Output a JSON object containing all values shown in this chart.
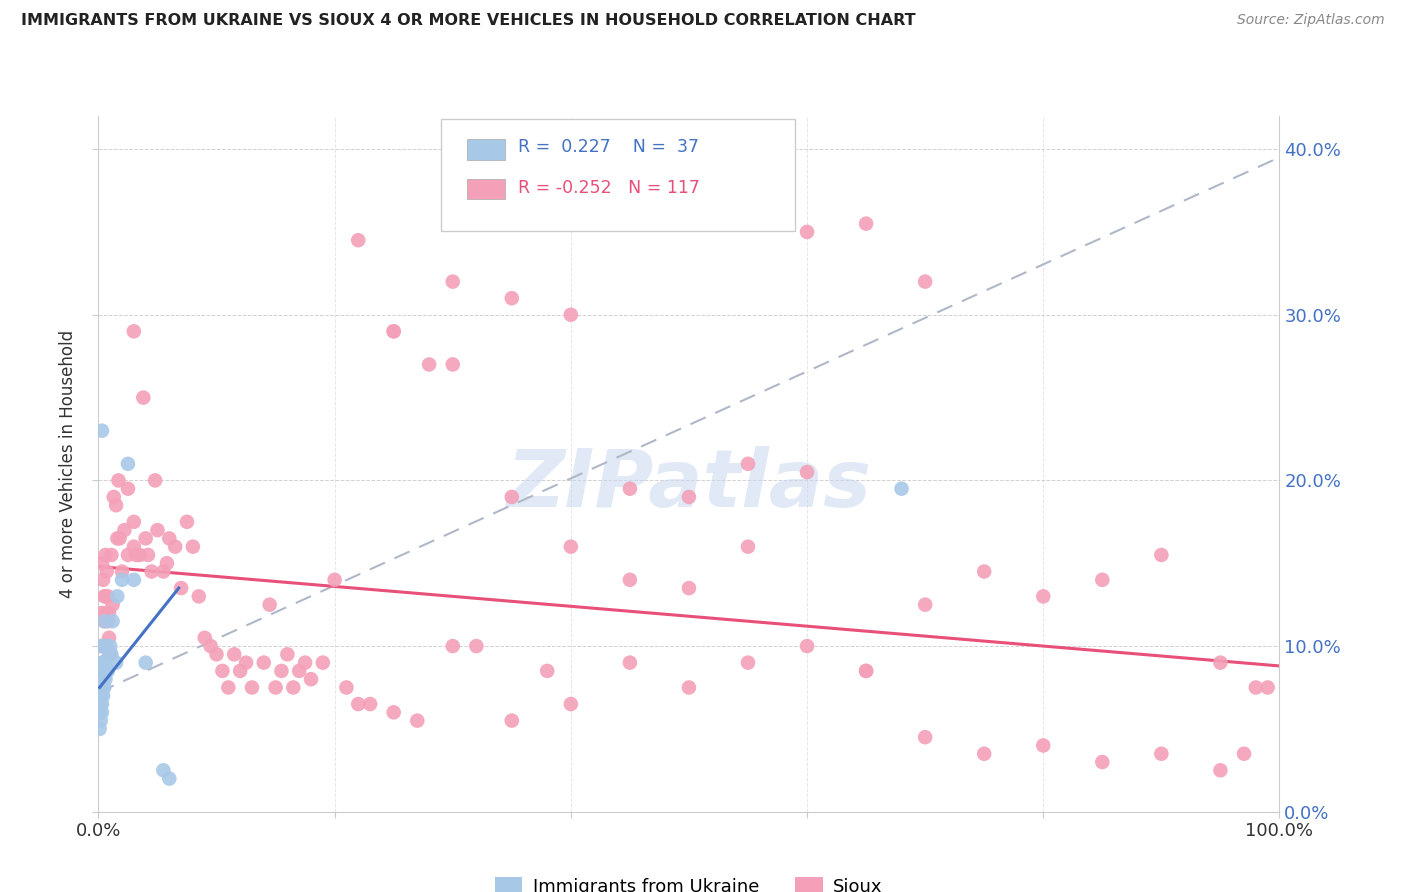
{
  "title": "IMMIGRANTS FROM UKRAINE VS SIOUX 4 OR MORE VEHICLES IN HOUSEHOLD CORRELATION CHART",
  "source": "Source: ZipAtlas.com",
  "ylabel": "4 or more Vehicles in Household",
  "xlim": [
    0.0,
    1.0
  ],
  "ylim": [
    0.0,
    0.42
  ],
  "yticks": [
    0.0,
    0.1,
    0.2,
    0.3,
    0.4
  ],
  "ytick_labels": [
    "",
    "",
    "",
    "",
    ""
  ],
  "right_ytick_labels": [
    "0.0%",
    "10.0%",
    "20.0%",
    "30.0%",
    "40.0%"
  ],
  "xticks": [
    0.0,
    0.2,
    0.4,
    0.6,
    0.8,
    1.0
  ],
  "ukraine_R": 0.227,
  "ukraine_N": 37,
  "sioux_R": -0.252,
  "sioux_N": 117,
  "ukraine_color": "#a8c8e8",
  "sioux_color": "#f4a0b8",
  "ukraine_line_color": "#4472c4",
  "sioux_line_color": "#e8507a",
  "trendline_color": "#b0b8c8",
  "background_color": "#ffffff",
  "ukraine_points_x": [
    0.001,
    0.001,
    0.002,
    0.002,
    0.002,
    0.003,
    0.003,
    0.003,
    0.003,
    0.003,
    0.003,
    0.004,
    0.004,
    0.004,
    0.004,
    0.005,
    0.005,
    0.005,
    0.005,
    0.006,
    0.006,
    0.007,
    0.008,
    0.009,
    0.01,
    0.011,
    0.012,
    0.015,
    0.016,
    0.02,
    0.025,
    0.03,
    0.04,
    0.055,
    0.06,
    0.68,
    0.003
  ],
  "ukraine_points_y": [
    0.05,
    0.06,
    0.055,
    0.065,
    0.07,
    0.06,
    0.065,
    0.08,
    0.085,
    0.09,
    0.1,
    0.07,
    0.075,
    0.08,
    0.09,
    0.075,
    0.085,
    0.1,
    0.115,
    0.08,
    0.09,
    0.1,
    0.085,
    0.095,
    0.1,
    0.095,
    0.115,
    0.09,
    0.13,
    0.14,
    0.21,
    0.14,
    0.09,
    0.025,
    0.02,
    0.195,
    0.23
  ],
  "sioux_points_x": [
    0.002,
    0.003,
    0.003,
    0.004,
    0.004,
    0.005,
    0.005,
    0.006,
    0.006,
    0.007,
    0.007,
    0.008,
    0.008,
    0.009,
    0.009,
    0.01,
    0.011,
    0.012,
    0.013,
    0.015,
    0.016,
    0.017,
    0.018,
    0.02,
    0.022,
    0.025,
    0.025,
    0.03,
    0.03,
    0.032,
    0.035,
    0.038,
    0.04,
    0.042,
    0.045,
    0.048,
    0.05,
    0.055,
    0.058,
    0.06,
    0.065,
    0.07,
    0.075,
    0.08,
    0.085,
    0.09,
    0.095,
    0.1,
    0.105,
    0.11,
    0.115,
    0.12,
    0.125,
    0.13,
    0.14,
    0.145,
    0.15,
    0.155,
    0.16,
    0.165,
    0.17,
    0.175,
    0.18,
    0.19,
    0.2,
    0.21,
    0.22,
    0.23,
    0.25,
    0.27,
    0.3,
    0.32,
    0.35,
    0.38,
    0.4,
    0.45,
    0.5,
    0.55,
    0.6,
    0.65,
    0.7,
    0.75,
    0.8,
    0.85,
    0.9,
    0.95,
    0.97,
    0.99,
    0.25,
    0.28,
    0.3,
    0.35,
    0.4,
    0.45,
    0.5,
    0.55,
    0.6,
    0.65,
    0.7,
    0.75,
    0.8,
    0.85,
    0.9,
    0.95,
    0.98,
    0.22,
    0.25,
    0.3,
    0.35,
    0.4,
    0.45,
    0.5,
    0.55,
    0.6,
    0.65,
    0.7,
    0.03
  ],
  "sioux_points_y": [
    0.1,
    0.12,
    0.15,
    0.1,
    0.14,
    0.115,
    0.13,
    0.13,
    0.155,
    0.12,
    0.145,
    0.115,
    0.13,
    0.105,
    0.12,
    0.095,
    0.155,
    0.125,
    0.19,
    0.185,
    0.165,
    0.2,
    0.165,
    0.145,
    0.17,
    0.155,
    0.195,
    0.16,
    0.175,
    0.155,
    0.155,
    0.25,
    0.165,
    0.155,
    0.145,
    0.2,
    0.17,
    0.145,
    0.15,
    0.165,
    0.16,
    0.135,
    0.175,
    0.16,
    0.13,
    0.105,
    0.1,
    0.095,
    0.085,
    0.075,
    0.095,
    0.085,
    0.09,
    0.075,
    0.09,
    0.125,
    0.075,
    0.085,
    0.095,
    0.075,
    0.085,
    0.09,
    0.08,
    0.09,
    0.14,
    0.075,
    0.065,
    0.065,
    0.06,
    0.055,
    0.1,
    0.1,
    0.055,
    0.085,
    0.065,
    0.09,
    0.075,
    0.09,
    0.1,
    0.085,
    0.045,
    0.035,
    0.04,
    0.03,
    0.035,
    0.025,
    0.035,
    0.075,
    0.29,
    0.27,
    0.32,
    0.31,
    0.3,
    0.195,
    0.19,
    0.21,
    0.205,
    0.085,
    0.125,
    0.145,
    0.13,
    0.14,
    0.155,
    0.09,
    0.075,
    0.345,
    0.29,
    0.27,
    0.19,
    0.16,
    0.14,
    0.135,
    0.16,
    0.35,
    0.355,
    0.32,
    0.29
  ],
  "watermark": "ZIPatlas",
  "ukraine_line_x0": 0.001,
  "ukraine_line_x1": 0.068,
  "ukraine_line_y0": 0.075,
  "ukraine_line_y1": 0.135,
  "sioux_line_x0": 0.0,
  "sioux_line_x1": 1.0,
  "sioux_line_y0": 0.148,
  "sioux_line_y1": 0.088,
  "dash_line_x0": 0.0,
  "dash_line_x1": 1.0,
  "dash_line_y0": 0.072,
  "dash_line_y1": 0.395
}
